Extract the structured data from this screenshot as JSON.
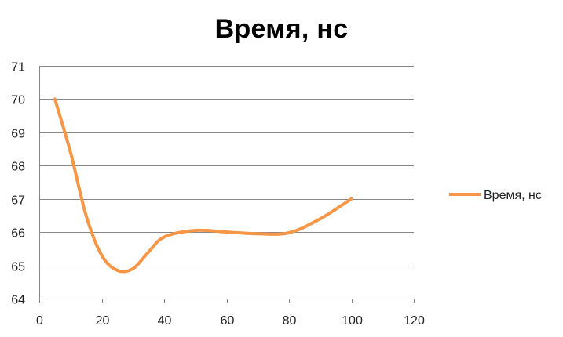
{
  "chart_data": {
    "type": "line",
    "title": "Время, нс",
    "xlabel": "",
    "ylabel": "",
    "xlim": [
      0,
      120
    ],
    "ylim": [
      64,
      71
    ],
    "x_ticks": [
      0,
      20,
      40,
      60,
      80,
      100,
      120
    ],
    "y_ticks": [
      64,
      65,
      66,
      67,
      68,
      69,
      70,
      71
    ],
    "grid": "horizontal",
    "legend_position": "right",
    "smooth": true,
    "series": [
      {
        "name": "Время, нс",
        "color": "#F79646",
        "x": [
          5,
          10,
          15,
          20,
          25,
          30,
          35,
          40,
          50,
          60,
          70,
          80,
          90,
          100
        ],
        "y": [
          70.0,
          68.4,
          66.5,
          65.3,
          64.85,
          64.9,
          65.4,
          65.85,
          66.05,
          66.0,
          65.95,
          65.98,
          66.4,
          67.0
        ]
      }
    ]
  }
}
